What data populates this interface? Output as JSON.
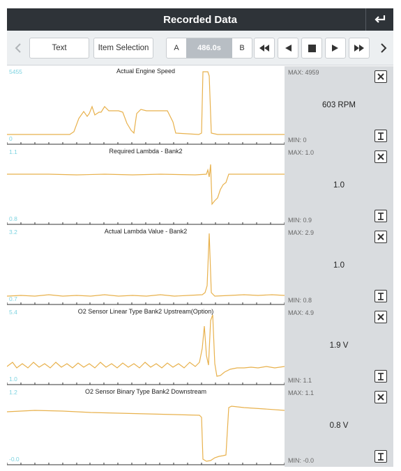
{
  "header": {
    "title": "Recorded Data",
    "back_icon": "return-arrow-icon"
  },
  "toolbar": {
    "text_label": "Text",
    "item_selection_label": "Item Selection",
    "marker_a": "A",
    "marker_b": "B",
    "time": "486.0s"
  },
  "colors": {
    "trace": "#e8b14c",
    "scale": "#7dd3e0",
    "header": "#2e3338",
    "side": "#d9dcdf"
  },
  "panels": [
    {
      "title": "Actual Engine Speed",
      "scale_max": "5455",
      "scale_min": "0",
      "max": "MAX: 4959",
      "min": "MIN: 0",
      "value": "603 RPM"
    },
    {
      "title": "Required Lambda - Bank2",
      "scale_max": "1.1",
      "scale_min": "0.8",
      "max": "MAX: 1.0",
      "min": "MIN: 0.9",
      "value": "1.0"
    },
    {
      "title": "Actual Lambda Value - Bank2",
      "scale_max": "3.2",
      "scale_min": "0.7",
      "max": "MAX: 2.9",
      "min": "MIN: 0.8",
      "value": "1.0"
    },
    {
      "title": "O2 Sensor Linear Type Bank2 Upstream(Option)",
      "scale_max": "5.4",
      "scale_min": "1.0",
      "max": "MAX: 4.9",
      "min": "MIN: 1.1",
      "value": "1.9 V"
    },
    {
      "title": "O2 Sensor Binary Type Bank2 Downstream",
      "scale_max": "1.2",
      "scale_min": "-0.0",
      "max": "MAX: 1.1",
      "min": "MIN: -0.0",
      "value": "0.8 V"
    }
  ]
}
